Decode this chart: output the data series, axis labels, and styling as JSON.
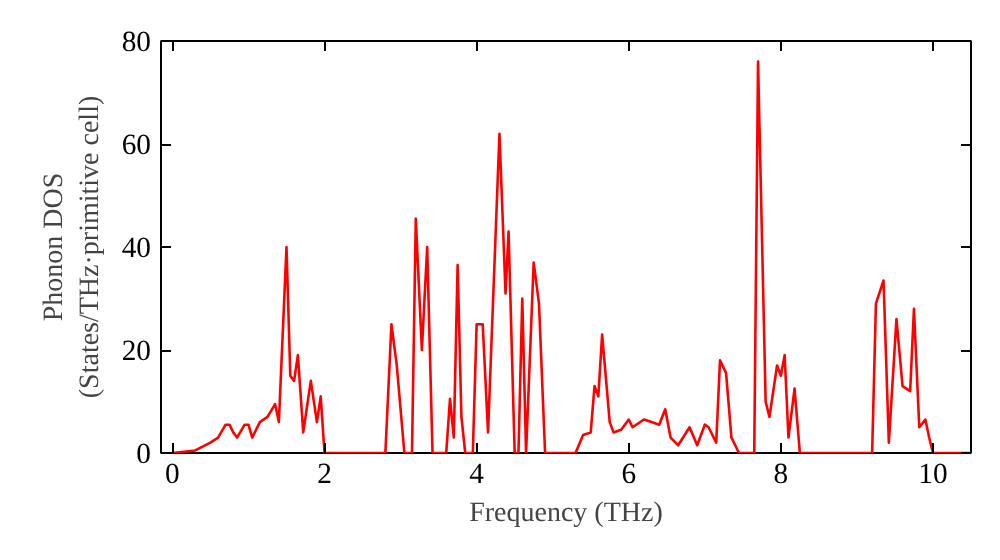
{
  "chart_data": {
    "type": "line",
    "xlabel": "Frequency (THz)",
    "ylabel": "Phonon DOS\n(States/THz·primitive cell)",
    "xlim": [
      -0.15,
      10.5
    ],
    "ylim": [
      0,
      80
    ],
    "xticks": [
      0,
      2,
      4,
      6,
      8,
      10
    ],
    "yticks": [
      0,
      20,
      40,
      60,
      80
    ],
    "grid": false,
    "marker": "none",
    "line_style": "solid",
    "series": [
      {
        "color": "#ff0000",
        "x": [
          0,
          0.3,
          0.5,
          0.6,
          0.7,
          0.75,
          0.8,
          0.85,
          0.95,
          1.0,
          1.05,
          1.15,
          1.25,
          1.35,
          1.4,
          1.5,
          1.55,
          1.6,
          1.65,
          1.72,
          1.82,
          1.9,
          1.95,
          2.0,
          2.8,
          2.88,
          2.95,
          3.05,
          3.15,
          3.2,
          3.28,
          3.35,
          3.42,
          3.6,
          3.65,
          3.7,
          3.75,
          3.8,
          3.85,
          3.95,
          4.0,
          4.08,
          4.15,
          4.3,
          4.38,
          4.42,
          4.5,
          4.55,
          4.6,
          4.65,
          4.75,
          4.82,
          4.9,
          5.3,
          5.4,
          5.5,
          5.55,
          5.6,
          5.65,
          5.75,
          5.8,
          5.9,
          6.0,
          6.05,
          6.2,
          6.3,
          6.4,
          6.48,
          6.55,
          6.65,
          6.8,
          6.9,
          7.0,
          7.05,
          7.15,
          7.2,
          7.28,
          7.35,
          7.45,
          7.65,
          7.7,
          7.8,
          7.85,
          7.95,
          8.0,
          8.05,
          8.1,
          8.18,
          8.25,
          9.2,
          9.25,
          9.35,
          9.42,
          9.52,
          9.6,
          9.7,
          9.75,
          9.82,
          9.9,
          9.95,
          10.0,
          10.5
        ],
        "values": [
          0,
          0.5,
          2,
          3,
          5.5,
          5.5,
          4,
          3,
          5.5,
          5.5,
          3,
          6,
          7,
          9.5,
          6,
          40,
          15,
          14,
          19,
          4,
          14,
          6,
          11,
          0,
          0,
          25,
          17,
          0,
          0,
          45.5,
          20,
          40,
          0,
          0,
          10.5,
          3,
          36.5,
          7,
          0,
          0,
          25,
          25,
          4,
          62,
          31,
          43,
          0,
          0,
          30,
          0,
          37,
          29,
          0,
          0,
          3.5,
          4,
          13,
          11,
          23,
          6,
          4,
          4.5,
          6.5,
          5,
          6.5,
          6,
          5.5,
          8.5,
          3,
          1.5,
          5,
          1.5,
          5.5,
          5,
          2,
          18,
          15.5,
          3,
          0,
          0,
          76,
          10,
          7,
          17,
          15,
          19,
          3,
          12.5,
          0,
          0,
          29,
          33.5,
          2,
          26,
          13,
          12,
          28,
          5,
          6.5,
          3,
          0,
          0
        ]
      }
    ]
  }
}
